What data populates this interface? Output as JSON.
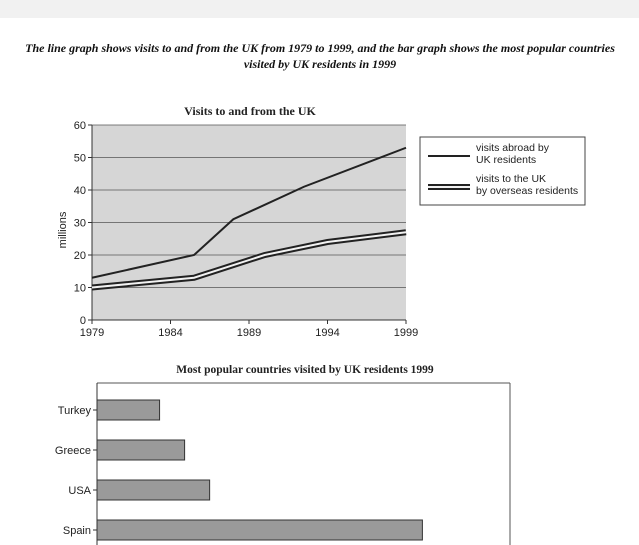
{
  "caption": "The line graph shows visits to and from the UK from 1979 to 1999, and the bar graph shows the most popular countries visited by UK residents in 1999",
  "chart_data": [
    {
      "type": "line",
      "title": "Visits to and from the UK",
      "xlabel": "",
      "ylabel": "millions",
      "x_ticks": [
        "1979",
        "1984",
        "1989",
        "1994",
        "1999"
      ],
      "y_ticks": [
        "0",
        "10",
        "20",
        "30",
        "40",
        "50",
        "60"
      ],
      "xlim": [
        1979,
        1999
      ],
      "ylim": [
        0,
        60
      ],
      "grid": true,
      "legend_position": "right",
      "series": [
        {
          "name": "visits abroad by UK residents",
          "style": "single",
          "x": [
            1979,
            1985.5,
            1988,
            1992.5,
            1999
          ],
          "y": [
            13,
            20,
            31,
            41,
            53
          ]
        },
        {
          "name": "visits to the UK by overseas residents",
          "style": "double",
          "x": [
            1979,
            1985.5,
            1990,
            1994,
            1999
          ],
          "y": [
            10,
            13,
            20,
            24,
            27
          ]
        }
      ]
    },
    {
      "type": "bar",
      "orientation": "horizontal",
      "title": "Most popular countries visited by UK residents 1999",
      "categories": [
        "Turkey",
        "Greece",
        "USA",
        "Spain"
      ],
      "values": [
        1,
        1.4,
        1.8,
        5.2
      ]
    }
  ],
  "colors": {
    "plot_bg": "#d6d6d6",
    "grid": "#555555",
    "line": "#222222",
    "bar_fill": "#9a9a9a",
    "bar_edge": "#333333"
  }
}
